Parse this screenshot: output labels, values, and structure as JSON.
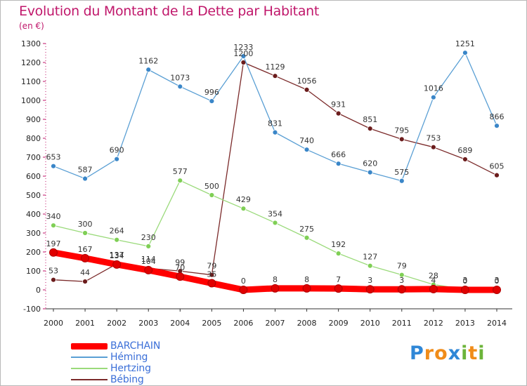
{
  "title": "Evolution du Montant de la Dette par Habitant",
  "subtitle": "(en €)",
  "logo": {
    "text": [
      "P",
      "r",
      "o",
      "x",
      "i",
      "t",
      "i"
    ],
    "colors": [
      "#2f87d7",
      "#f08c19",
      "#f08c19",
      "#2f87d7",
      "#6cb43a",
      "#f08c19",
      "#6cb43a"
    ]
  },
  "chart_data": {
    "type": "line",
    "title": "Evolution du Montant de la Dette par Habitant",
    "ylabel": "(en €)",
    "xlabel": "",
    "x": [
      "2000",
      "2001",
      "2002",
      "2003",
      "2004",
      "2005",
      "2006",
      "2007",
      "2008",
      "2009",
      "2010",
      "2011",
      "2012",
      "2013",
      "2014"
    ],
    "ylim": [
      -100,
      1300
    ],
    "yticks": [
      -100,
      0,
      100,
      200,
      300,
      400,
      500,
      600,
      700,
      800,
      900,
      1000,
      1100,
      1200,
      1300
    ],
    "grid": false,
    "legend_position": "bottom-left",
    "series": [
      {
        "name": "Bébing",
        "color": "#7b2a2a",
        "marker": "#6b1c1c",
        "values": [
          53,
          44,
          137,
          114,
          99,
          79,
          1200,
          1129,
          1056,
          931,
          851,
          795,
          753,
          689,
          605
        ]
      },
      {
        "name": "Héming",
        "color": "#5a9fd4",
        "marker": "#3a86c8",
        "values": [
          653,
          587,
          690,
          1162,
          1073,
          996,
          1233,
          831,
          740,
          666,
          620,
          575,
          1016,
          1251,
          866
        ]
      },
      {
        "name": "Hertzing",
        "color": "#9ada7a",
        "marker": "#7fcf55",
        "values": [
          340,
          300,
          264,
          230,
          577,
          500,
          429,
          354,
          275,
          192,
          127,
          79,
          28,
          3,
          3
        ]
      },
      {
        "name": "BARCHAIN",
        "color": "#ff0000",
        "marker": "#e00000",
        "values": [
          197,
          167,
          134,
          104,
          70,
          35,
          0,
          8,
          8,
          7,
          3,
          3,
          4,
          0,
          0
        ]
      }
    ]
  }
}
